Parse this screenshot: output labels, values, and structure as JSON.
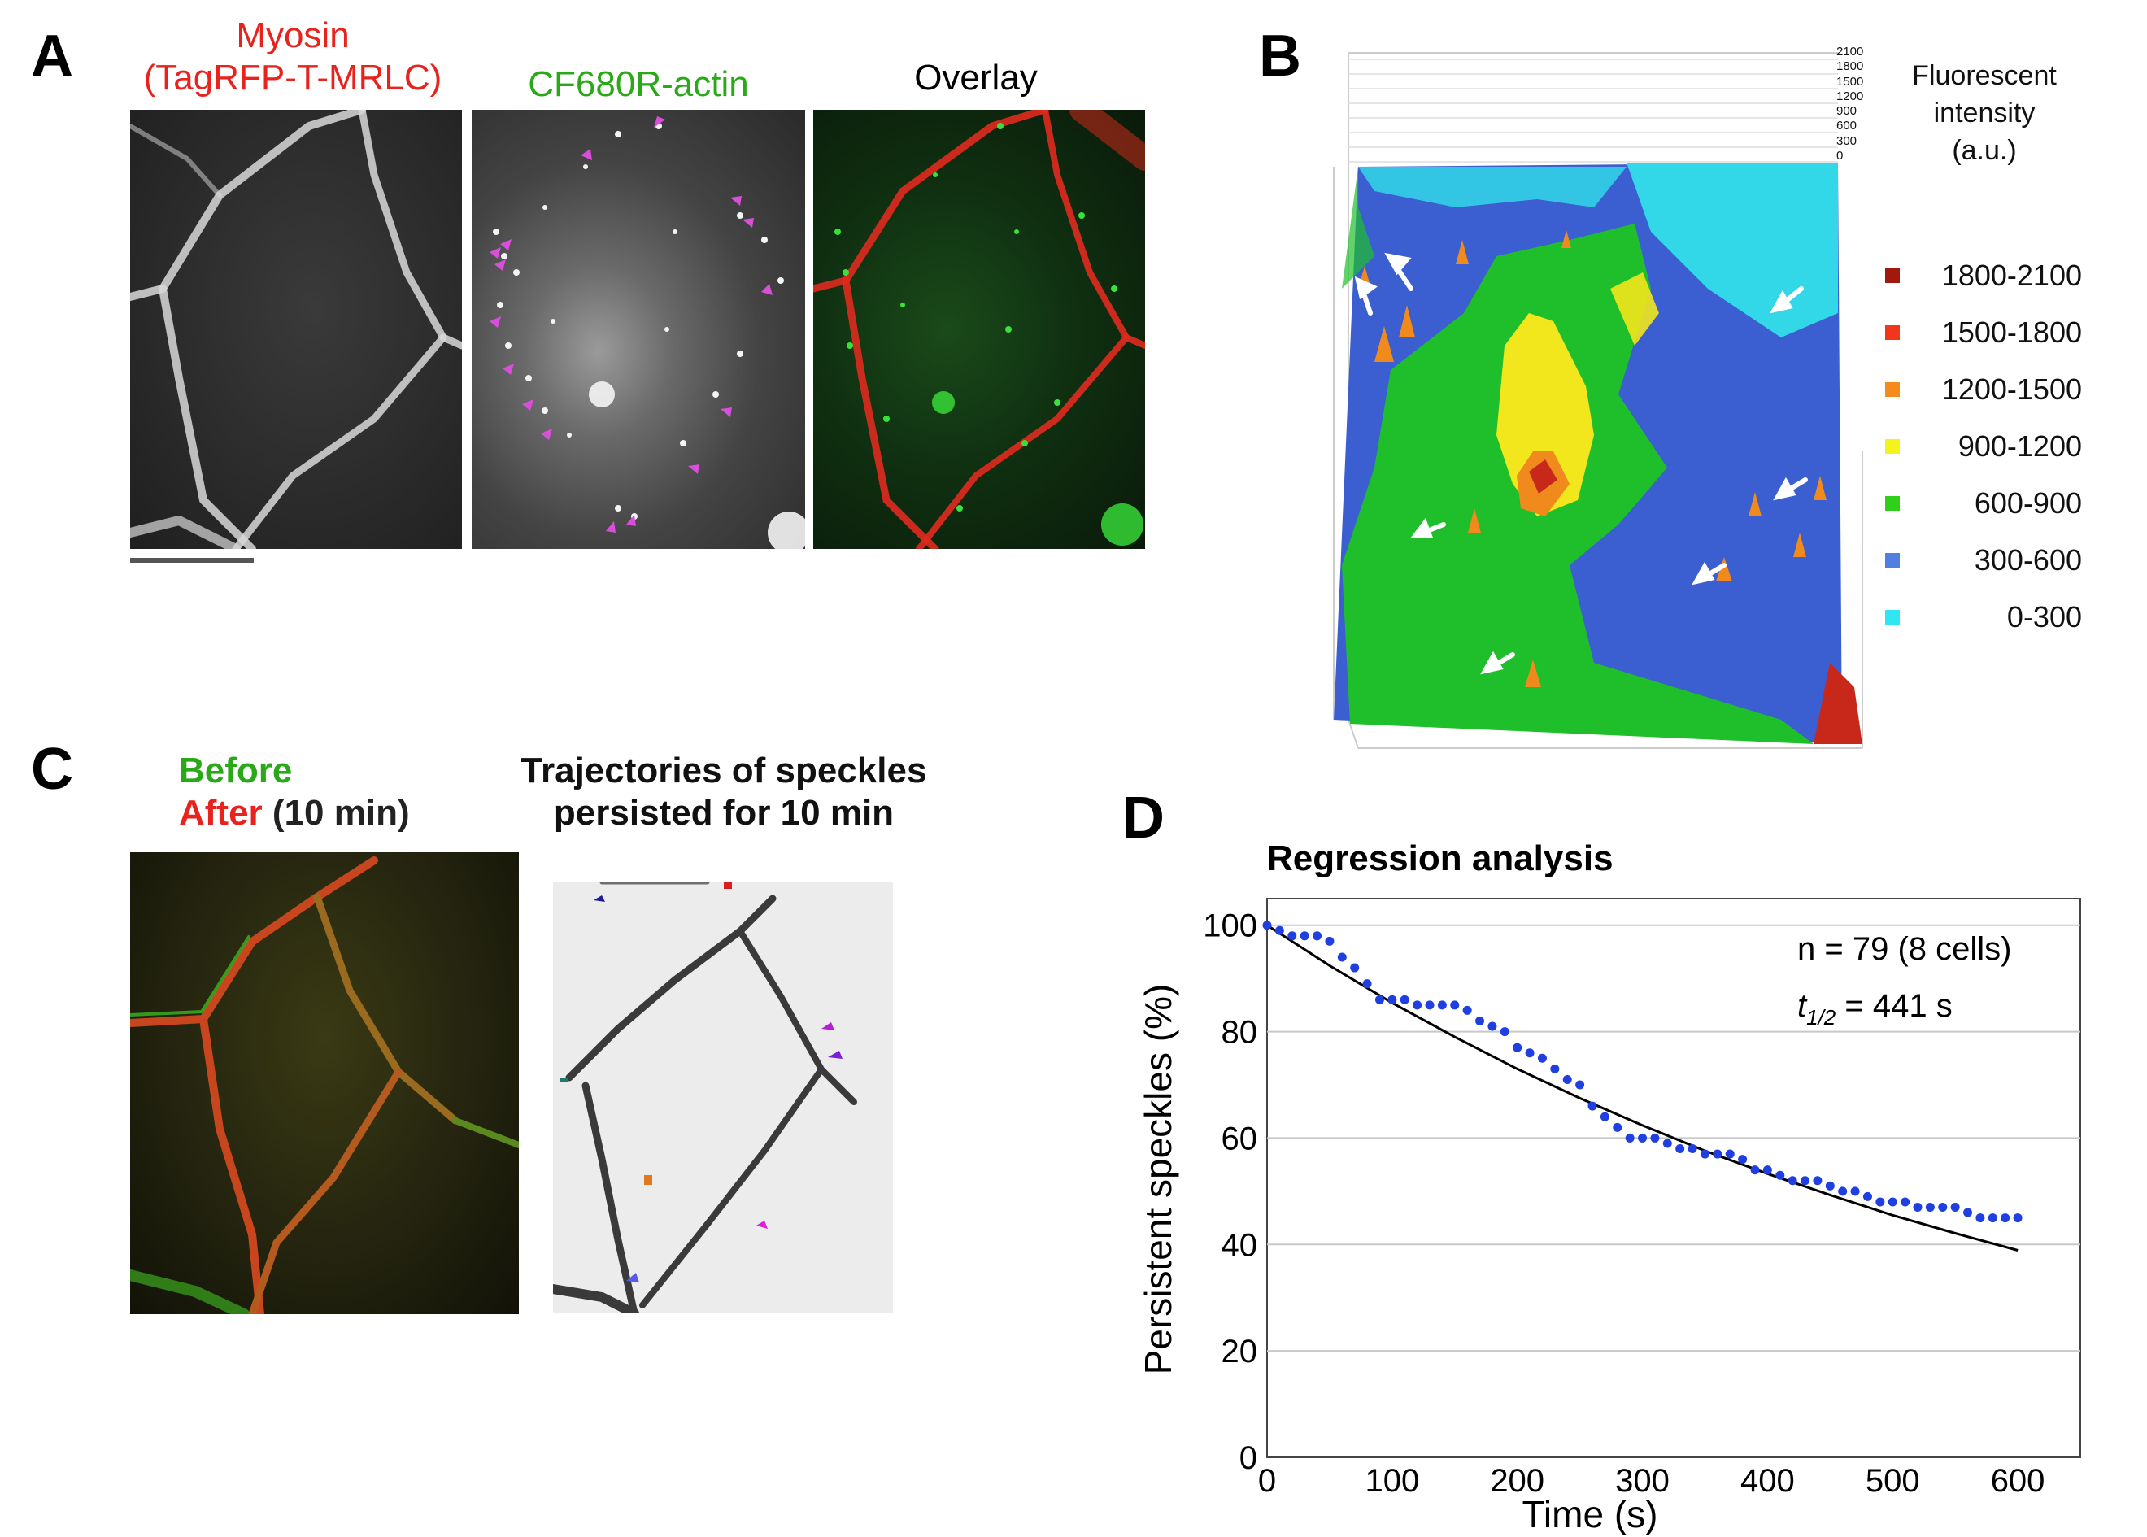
{
  "panels": {
    "A": {
      "label": "A",
      "myosin_title_line1": "Myosin",
      "myosin_title_line2": "(TagRFP-T-MRLC)",
      "actin_title": "CF680R-actin",
      "overlay_title": "Overlay"
    },
    "B": {
      "label": "B",
      "z_ticks": [
        "2100",
        "1800",
        "1500",
        "1200",
        "900",
        "600",
        "300",
        "0"
      ],
      "legend_title_line1": "Fluorescent",
      "legend_title_line2": "intensity",
      "legend_title_line3": "(a.u.)",
      "legend": [
        {
          "label": "1800-2100",
          "color": "#a0180e"
        },
        {
          "label": "1500-1800",
          "color": "#f2361c"
        },
        {
          "label": "1200-1500",
          "color": "#f78a1c"
        },
        {
          "label": "900-1200",
          "color": "#f6f21c"
        },
        {
          "label": "600-900",
          "color": "#2fcf1a"
        },
        {
          "label": "300-600",
          "color": "#4f7fe0"
        },
        {
          "label": "0-300",
          "color": "#30e6f0"
        }
      ]
    },
    "C": {
      "label": "C",
      "before": "Before",
      "after": "After",
      "after_suffix": " (10 min)",
      "traj_line1": "Trajectories of speckles",
      "traj_line2": "persisted for 10 min"
    },
    "D": {
      "label": "D",
      "n_text": "n = 79 (8 cells)",
      "t_half_symbol": "t",
      "t_half_sub": "1/2",
      "t_half_value": " = 441 s"
    }
  },
  "chart_data": {
    "type": "scatter",
    "title": "Regression analysis",
    "xlabel": "Time (s)",
    "ylabel": "Persistent speckles (%)",
    "xlim": [
      0,
      650
    ],
    "ylim": [
      0,
      105
    ],
    "xticks": [
      0,
      100,
      200,
      300,
      400,
      500,
      600
    ],
    "yticks": [
      0,
      20,
      40,
      60,
      80,
      100
    ],
    "grid": "horizontal",
    "series": [
      {
        "name": "Persistent speckles",
        "kind": "points",
        "color": "#1f3fe0",
        "x": [
          0,
          10,
          20,
          30,
          40,
          50,
          60,
          70,
          80,
          90,
          100,
          110,
          120,
          130,
          140,
          150,
          160,
          170,
          180,
          190,
          200,
          210,
          220,
          230,
          240,
          250,
          260,
          270,
          280,
          290,
          300,
          310,
          320,
          330,
          340,
          350,
          360,
          370,
          380,
          390,
          400,
          410,
          420,
          430,
          440,
          450,
          460,
          470,
          480,
          490,
          500,
          510,
          520,
          530,
          540,
          550,
          560,
          570,
          580,
          590,
          600
        ],
        "y": [
          100,
          99,
          98,
          98,
          98,
          97,
          94,
          92,
          89,
          86,
          86,
          86,
          85,
          85,
          85,
          85,
          84,
          82,
          81,
          80,
          77,
          76,
          75,
          73,
          71,
          70,
          66,
          64,
          62,
          60,
          60,
          60,
          59,
          58,
          58,
          57,
          57,
          57,
          56,
          54,
          54,
          53,
          52,
          52,
          52,
          51,
          50,
          50,
          49,
          48,
          48,
          48,
          47,
          47,
          47,
          47,
          46,
          45,
          45,
          45,
          45
        ]
      },
      {
        "name": "Exponential fit (t1/2 = 441 s)",
        "kind": "line",
        "color": "#000000",
        "x": [
          0,
          50,
          100,
          150,
          200,
          250,
          300,
          350,
          400,
          450,
          500,
          550,
          600
        ],
        "y": [
          100,
          92.4,
          85.4,
          79.0,
          73.0,
          67.5,
          62.4,
          57.6,
          53.3,
          49.3,
          45.5,
          42.1,
          38.9
        ]
      }
    ]
  }
}
